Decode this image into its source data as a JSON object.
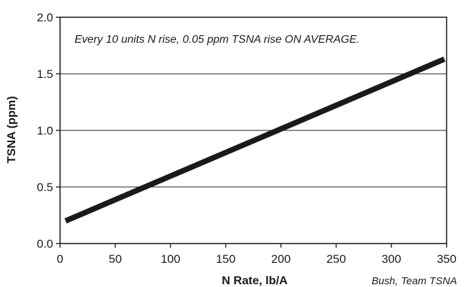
{
  "chart_data": {
    "type": "line",
    "annotation": "Every 10 units N rise, 0.05 ppm TSNA rise ON AVERAGE.",
    "xlabel": "N Rate, lb/A",
    "ylabel": "TSNA (ppm)",
    "credit": "Bush, Team TSNA",
    "xlim": [
      0,
      350
    ],
    "ylim": [
      0.0,
      2.0
    ],
    "x_ticks": [
      0,
      50,
      100,
      150,
      200,
      250,
      300,
      350
    ],
    "y_ticks": [
      "0.0",
      "0.5",
      "1.0",
      "1.5",
      "2.0"
    ],
    "y_tick_values": [
      0.0,
      0.5,
      1.0,
      1.5,
      2.0
    ],
    "grid": "horizontal",
    "series": [
      {
        "x": [
          5,
          348
        ],
        "y": [
          0.2,
          1.63
        ],
        "color": "#1a1a1a"
      }
    ]
  }
}
